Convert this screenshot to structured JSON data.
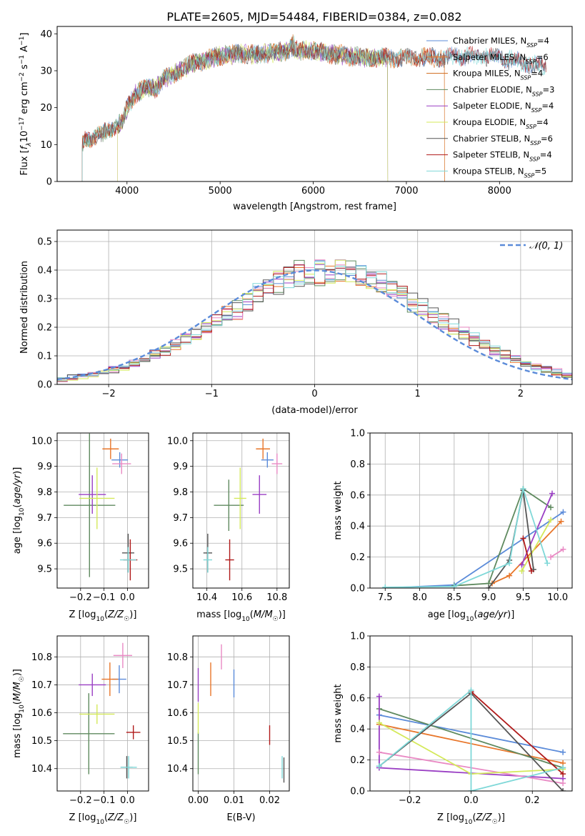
{
  "figure": {
    "title": "PLATE=2605, MJD=54484, FIBERID=0384, z=0.082",
    "colors": [
      "#5b8bd9",
      "#e8762a",
      "#5f8a5f",
      "#9a3fc4",
      "#e98ac4",
      "#d4e95a",
      "#555555",
      "#b01a1a",
      "#7fd8d8"
    ]
  },
  "chart_data": [
    {
      "id": "spectrum",
      "type": "line",
      "xlabel": "wavelength [Angstrom, rest frame]",
      "ylabel": "Flux [f_λ10^-17 erg cm^-2 s^-1 A^-1]",
      "xlim": [
        3250,
        8780
      ],
      "ylim": [
        0,
        42
      ],
      "xticks": [
        4000,
        5000,
        6000,
        7000,
        8000
      ],
      "yticks": [
        0,
        10,
        20,
        30,
        40
      ],
      "grid": false,
      "legend": "top-right",
      "continuum": {
        "x": [
          3520,
          3560,
          3700,
          3850,
          3950,
          4000,
          4100,
          4200,
          4300,
          4400,
          4500,
          4700,
          4860,
          5000,
          5200,
          5400,
          5600,
          5800,
          6000,
          6200,
          6400,
          6600,
          6800,
          7000,
          7200,
          7400,
          7600,
          7800,
          8000,
          8200,
          8400,
          8500
        ],
        "y": [
          10,
          11.5,
          12.5,
          14.5,
          16,
          20,
          24,
          25.5,
          25,
          28,
          29,
          32,
          33,
          34,
          34.5,
          34.5,
          35,
          35.5,
          35.5,
          34.5,
          34,
          33.5,
          33.5,
          33.5,
          33.5,
          33.5,
          34,
          34,
          33.5,
          32.5,
          31.5,
          31
        ]
      },
      "series": [
        {
          "name": "Chabrier MILES, N_SSP=4",
          "color": "#5b8bd9",
          "x_start": 3520,
          "x_end": 8500
        },
        {
          "name": "Salpeter MILES, N_SSP=6",
          "color": "#e8762a",
          "x_start": 3520,
          "x_end": 7410
        },
        {
          "name": "Kroupa MILES, N_SSP=4",
          "color": "#d06a1a",
          "x_start": 3520,
          "x_end": 7410
        },
        {
          "name": "Chabrier ELODIE, N_SSP=3",
          "color": "#5f8a5f",
          "x_start": 3520,
          "x_end": 6800
        },
        {
          "name": "Salpeter ELODIE, N_SSP=4",
          "color": "#9a3fc4",
          "x_start": 3900,
          "x_end": 6800
        },
        {
          "name": "Kroupa ELODIE, N_SSP=4",
          "color": "#d4e95a",
          "x_start": 3900,
          "x_end": 6800
        },
        {
          "name": "Chabrier STELIB, N_SSP=6",
          "color": "#555555",
          "x_start": 3520,
          "x_end": 8500
        },
        {
          "name": "Salpeter STELIB, N_SSP=4",
          "color": "#b01a1a",
          "x_start": 3520,
          "x_end": 8500
        },
        {
          "name": "Kroupa STELIB, N_SSP=5",
          "color": "#7fd8d8",
          "x_start": 3520,
          "x_end": 8500
        }
      ]
    },
    {
      "id": "residuals",
      "type": "histogram",
      "xlabel": "(data-model)/error",
      "ylabel": "Normed distribution",
      "xlim": [
        -2.5,
        2.5
      ],
      "ylim": [
        0,
        0.54
      ],
      "xticks": [
        -2,
        -1,
        0,
        1,
        2
      ],
      "yticks": [
        0.0,
        0.1,
        0.2,
        0.3,
        0.4,
        0.5
      ],
      "grid": true,
      "legend": "top-right",
      "reference": {
        "name": "𝒩(0, 1)",
        "color": "#5b8bd9",
        "mean": 0,
        "sigma": 1
      },
      "bin_start": -2.5,
      "bin_width": 0.1,
      "shape": [
        0.018,
        0.022,
        0.027,
        0.034,
        0.043,
        0.051,
        0.061,
        0.074,
        0.088,
        0.103,
        0.12,
        0.138,
        0.158,
        0.178,
        0.2,
        0.22,
        0.242,
        0.265,
        0.29,
        0.312,
        0.335,
        0.355,
        0.37,
        0.383,
        0.393,
        0.398,
        0.4,
        0.398,
        0.393,
        0.383,
        0.37,
        0.355,
        0.335,
        0.312,
        0.29,
        0.265,
        0.242,
        0.22,
        0.2,
        0.178,
        0.158,
        0.138,
        0.12,
        0.103,
        0.088,
        0.074,
        0.061,
        0.051,
        0.043,
        0.034
      ]
    },
    {
      "id": "age-vs-Z",
      "type": "scatter",
      "xlabel": "Z [log10(Z/Z☉)]",
      "ylabel": "age  [log10(age/yr)]",
      "xlim": [
        -0.3,
        0.09
      ],
      "ylim": [
        9.425,
        10.03
      ],
      "xticks": [
        -0.2,
        -0.1,
        0.0
      ],
      "yticks": [
        9.5,
        9.6,
        9.7,
        9.8,
        9.9,
        10.0
      ],
      "grid": true,
      "points": [
        {
          "x": -0.033,
          "y": 9.925,
          "xerr": 0.035,
          "yerr": 0.03,
          "color": "#5b8bd9"
        },
        {
          "x": -0.072,
          "y": 9.968,
          "xerr": 0.035,
          "yerr": 0.04,
          "color": "#e8762a"
        },
        {
          "x": -0.162,
          "y": 9.748,
          "xerr": 0.11,
          "yerr": 0.28,
          "color": "#5f8a5f"
        },
        {
          "x": -0.15,
          "y": 9.79,
          "xerr": 0.058,
          "yerr": 0.075,
          "color": "#9a3fc4"
        },
        {
          "x": -0.025,
          "y": 9.91,
          "xerr": 0.04,
          "yerr": 0.04,
          "color": "#e98ac4"
        },
        {
          "x": -0.13,
          "y": 9.775,
          "xerr": 0.075,
          "yerr": 0.12,
          "color": "#d4e95a"
        },
        {
          "x": 0.003,
          "y": 9.562,
          "xerr": 0.026,
          "yerr": 0.075,
          "color": "#555555"
        },
        {
          "x": 0.012,
          "y": 9.535,
          "xerr": 0.03,
          "yerr": 0.08,
          "color": "#b01a1a"
        },
        {
          "x": 0.003,
          "y": 9.535,
          "xerr": 0.035,
          "yerr": 0.05,
          "color": "#7fd8d8"
        }
      ]
    },
    {
      "id": "age-vs-mass",
      "type": "scatter",
      "xlabel": "mass [log10(M/M☉)]",
      "ylabel": "",
      "xlim": [
        10.32,
        10.87
      ],
      "ylim": [
        9.425,
        10.03
      ],
      "xticks": [
        10.4,
        10.6,
        10.8
      ],
      "yticks": [
        9.5,
        9.6,
        9.7,
        9.8,
        9.9,
        10.0
      ],
      "grid": true,
      "points": [
        {
          "x": 10.745,
          "y": 9.925,
          "xerr": 0.035,
          "yerr": 0.03,
          "color": "#5b8bd9"
        },
        {
          "x": 10.72,
          "y": 9.968,
          "xerr": 0.04,
          "yerr": 0.04,
          "color": "#e8762a"
        },
        {
          "x": 10.525,
          "y": 9.748,
          "xerr": 0.085,
          "yerr": 0.1,
          "color": "#5f8a5f"
        },
        {
          "x": 10.7,
          "y": 9.79,
          "xerr": 0.04,
          "yerr": 0.075,
          "color": "#9a3fc4"
        },
        {
          "x": 10.8,
          "y": 9.91,
          "xerr": 0.03,
          "yerr": 0.04,
          "color": "#e98ac4"
        },
        {
          "x": 10.59,
          "y": 9.775,
          "xerr": 0.035,
          "yerr": 0.12,
          "color": "#d4e95a"
        },
        {
          "x": 10.405,
          "y": 9.562,
          "xerr": 0.025,
          "yerr": 0.075,
          "color": "#555555"
        },
        {
          "x": 10.53,
          "y": 9.535,
          "xerr": 0.025,
          "yerr": 0.08,
          "color": "#b01a1a"
        },
        {
          "x": 10.405,
          "y": 9.535,
          "xerr": 0.025,
          "yerr": 0.05,
          "color": "#7fd8d8"
        }
      ]
    },
    {
      "id": "mass-weight-vs-age",
      "type": "line",
      "xlabel": "age  [log10(age/yr)]",
      "ylabel": "mass weight",
      "xlim": [
        7.28,
        10.21
      ],
      "ylim": [
        0,
        1
      ],
      "xticks": [
        7.5,
        8.0,
        8.5,
        9.0,
        9.5,
        10.0
      ],
      "yticks": [
        0.0,
        0.2,
        0.4,
        0.6,
        0.8,
        1.0
      ],
      "grid": true,
      "series": [
        {
          "color": "#5b8bd9",
          "x": [
            7.5,
            8.5,
            10.08
          ],
          "y": [
            0.0,
            0.02,
            0.49
          ]
        },
        {
          "color": "#e8762a",
          "x": [
            9.05,
            9.3,
            10.05
          ],
          "y": [
            0.03,
            0.08,
            0.43
          ]
        },
        {
          "color": "#5f8a5f",
          "x": [
            8.5,
            9.0,
            9.5,
            9.9
          ],
          "y": [
            0.015,
            0.03,
            0.64,
            0.52
          ]
        },
        {
          "color": "#9a3fc4",
          "x": [
            9.48,
            9.92
          ],
          "y": [
            0.15,
            0.61
          ]
        },
        {
          "color": "#e98ac4",
          "x": [
            9.9,
            10.08
          ],
          "y": [
            0.2,
            0.25
          ]
        },
        {
          "color": "#d4e95a",
          "x": [
            9.48,
            9.9
          ],
          "y": [
            0.11,
            0.44
          ]
        },
        {
          "color": "#555555",
          "x": [
            9.0,
            9.3,
            9.5,
            9.65
          ],
          "y": [
            0.0,
            0.18,
            0.63,
            0.12
          ]
        },
        {
          "color": "#b01a1a",
          "x": [
            9.5,
            9.62
          ],
          "y": [
            0.32,
            0.11
          ]
        },
        {
          "color": "#7fd8d8",
          "x": [
            7.5,
            8.5,
            9.3,
            9.5,
            9.85
          ],
          "y": [
            0.005,
            0.01,
            0.16,
            0.64,
            0.16
          ]
        }
      ]
    },
    {
      "id": "mass-vs-Z",
      "type": "scatter",
      "xlabel": "Z [log10(Z/Z☉)]",
      "ylabel": "mass [log10(M/M☉)]",
      "xlim": [
        -0.3,
        0.09
      ],
      "ylim": [
        10.32,
        10.875
      ],
      "xticks": [
        -0.2,
        -0.1,
        0.0
      ],
      "yticks": [
        10.4,
        10.5,
        10.6,
        10.7,
        10.8
      ],
      "grid": true,
      "points": [
        {
          "x": -0.035,
          "y": 10.72,
          "xerr": 0.03,
          "yerr": 0.05,
          "color": "#5b8bd9"
        },
        {
          "x": -0.075,
          "y": 10.72,
          "xerr": 0.035,
          "yerr": 0.06,
          "color": "#e8762a"
        },
        {
          "x": -0.165,
          "y": 10.525,
          "xerr": 0.11,
          "yerr": 0.145,
          "color": "#5f8a5f"
        },
        {
          "x": -0.15,
          "y": 10.7,
          "xerr": 0.058,
          "yerr": 0.04,
          "color": "#9a3fc4"
        },
        {
          "x": -0.02,
          "y": 10.805,
          "xerr": 0.04,
          "yerr": 0.045,
          "color": "#e98ac4"
        },
        {
          "x": -0.13,
          "y": 10.595,
          "xerr": 0.075,
          "yerr": 0.035,
          "color": "#d4e95a"
        },
        {
          "x": -0.003,
          "y": 10.405,
          "xerr": 0.025,
          "yerr": 0.04,
          "color": "#555555"
        },
        {
          "x": 0.025,
          "y": 10.53,
          "xerr": 0.03,
          "yerr": 0.025,
          "color": "#b01a1a"
        },
        {
          "x": 0.005,
          "y": 10.405,
          "xerr": 0.035,
          "yerr": 0.04,
          "color": "#7fd8d8"
        }
      ]
    },
    {
      "id": "mass-vs-EBV",
      "type": "scatter",
      "xlabel": "E(B-V)",
      "ylabel": "",
      "xlim": [
        -0.0015,
        0.0255
      ],
      "ylim": [
        10.32,
        10.875
      ],
      "xticks": [
        0.0,
        0.01,
        0.02
      ],
      "yticks": [
        10.4,
        10.5,
        10.6,
        10.7,
        10.8
      ],
      "grid": true,
      "points": [
        {
          "x": 0.01,
          "y": 10.705,
          "xerr": 0,
          "yerr": 0.05,
          "color": "#5b8bd9"
        },
        {
          "x": 0.0035,
          "y": 10.72,
          "xerr": 0,
          "yerr": 0.06,
          "color": "#e8762a"
        },
        {
          "x": 0.0,
          "y": 10.455,
          "xerr": 0,
          "yerr": 0.075,
          "color": "#5f8a5f"
        },
        {
          "x": 0.0,
          "y": 10.7,
          "xerr": 0,
          "yerr": 0.06,
          "color": "#9a3fc4"
        },
        {
          "x": 0.0065,
          "y": 10.8,
          "xerr": 0,
          "yerr": 0.045,
          "color": "#e98ac4"
        },
        {
          "x": 0.0,
          "y": 10.58,
          "xerr": 0,
          "yerr": 0.055,
          "color": "#d4e95a"
        },
        {
          "x": 0.024,
          "y": 10.395,
          "xerr": 0,
          "yerr": 0.045,
          "color": "#555555"
        },
        {
          "x": 0.02,
          "y": 10.52,
          "xerr": 0,
          "yerr": 0.035,
          "color": "#b01a1a"
        },
        {
          "x": 0.0235,
          "y": 10.405,
          "xerr": 0,
          "yerr": 0.04,
          "color": "#7fd8d8"
        }
      ]
    },
    {
      "id": "mass-weight-vs-Z",
      "type": "line",
      "xlabel": "Z [log10(Z/Z☉)]",
      "ylabel": "mass weight",
      "xlim": [
        -0.33,
        0.33
      ],
      "ylim": [
        0,
        1
      ],
      "xticks": [
        -0.2,
        0.0,
        0.2
      ],
      "yticks": [
        0.0,
        0.2,
        0.4,
        0.6,
        0.8,
        1.0
      ],
      "grid": true,
      "series": [
        {
          "color": "#5b8bd9",
          "x": [
            -0.3,
            0.3
          ],
          "y": [
            0.49,
            0.25
          ]
        },
        {
          "color": "#e8762a",
          "x": [
            -0.3,
            0.3
          ],
          "y": [
            0.43,
            0.18
          ]
        },
        {
          "color": "#5f8a5f",
          "x": [
            -0.3,
            0.3
          ],
          "y": [
            0.53,
            0.15
          ]
        },
        {
          "color": "#9a3fc4",
          "x": [
            -0.3,
            -0.3,
            0.3
          ],
          "y": [
            0.61,
            0.15,
            0.08
          ]
        },
        {
          "color": "#e98ac4",
          "x": [
            -0.3,
            0.3
          ],
          "y": [
            0.25,
            0.05
          ]
        },
        {
          "color": "#d4e95a",
          "x": [
            -0.3,
            0.0,
            0.3
          ],
          "y": [
            0.44,
            0.11,
            0.14
          ]
        },
        {
          "color": "#555555",
          "x": [
            -0.3,
            0.0,
            0.3
          ],
          "y": [
            0.16,
            0.63,
            0.0
          ]
        },
        {
          "color": "#b01a1a",
          "x": [
            0.0,
            0.3
          ],
          "y": [
            0.64,
            0.11
          ]
        },
        {
          "color": "#7fd8d8",
          "x": [
            -0.3,
            0.0,
            0.0,
            0.3
          ],
          "y": [
            0.16,
            0.65,
            0.0,
            0.15
          ]
        }
      ]
    }
  ]
}
